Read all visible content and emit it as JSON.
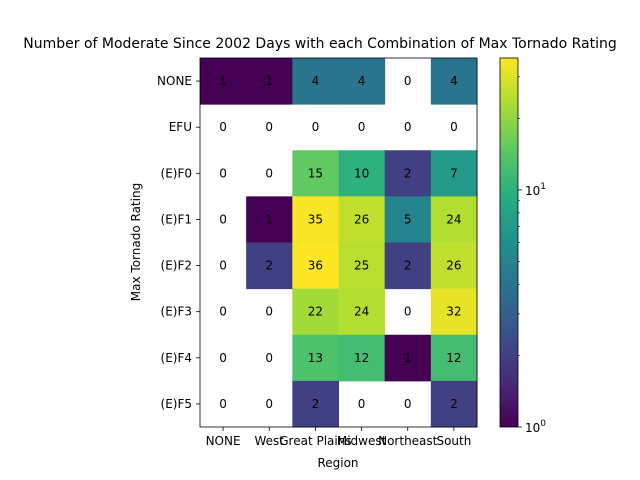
{
  "chart_data": {
    "type": "heatmap",
    "title": "Number of Moderate Since 2002 Days with each Combination of Max Tornado Rating",
    "xlabel": "Region",
    "ylabel": "Max Tornado Rating",
    "x_categories": [
      "NONE",
      "West",
      "Great Plains",
      "Midwest",
      "Northeast",
      "South"
    ],
    "y_categories": [
      "NONE",
      "EFU",
      "(E)F0",
      "(E)F1",
      "(E)F2",
      "(E)F3",
      "(E)F4",
      "(E)F5"
    ],
    "values": [
      [
        1,
        1,
        4,
        4,
        0,
        4
      ],
      [
        0,
        0,
        0,
        0,
        0,
        0
      ],
      [
        0,
        0,
        15,
        10,
        2,
        7
      ],
      [
        0,
        1,
        35,
        26,
        5,
        24
      ],
      [
        0,
        2,
        36,
        25,
        2,
        26
      ],
      [
        0,
        0,
        22,
        24,
        0,
        32
      ],
      [
        0,
        0,
        13,
        12,
        1,
        12
      ],
      [
        0,
        0,
        2,
        0,
        0,
        2
      ]
    ],
    "colorbar": {
      "scale": "log",
      "colormap": "viridis",
      "range": [
        1,
        36
      ],
      "tick_labels": [
        "10^0",
        "10^1"
      ]
    },
    "zero_cells": "blank (white)"
  }
}
